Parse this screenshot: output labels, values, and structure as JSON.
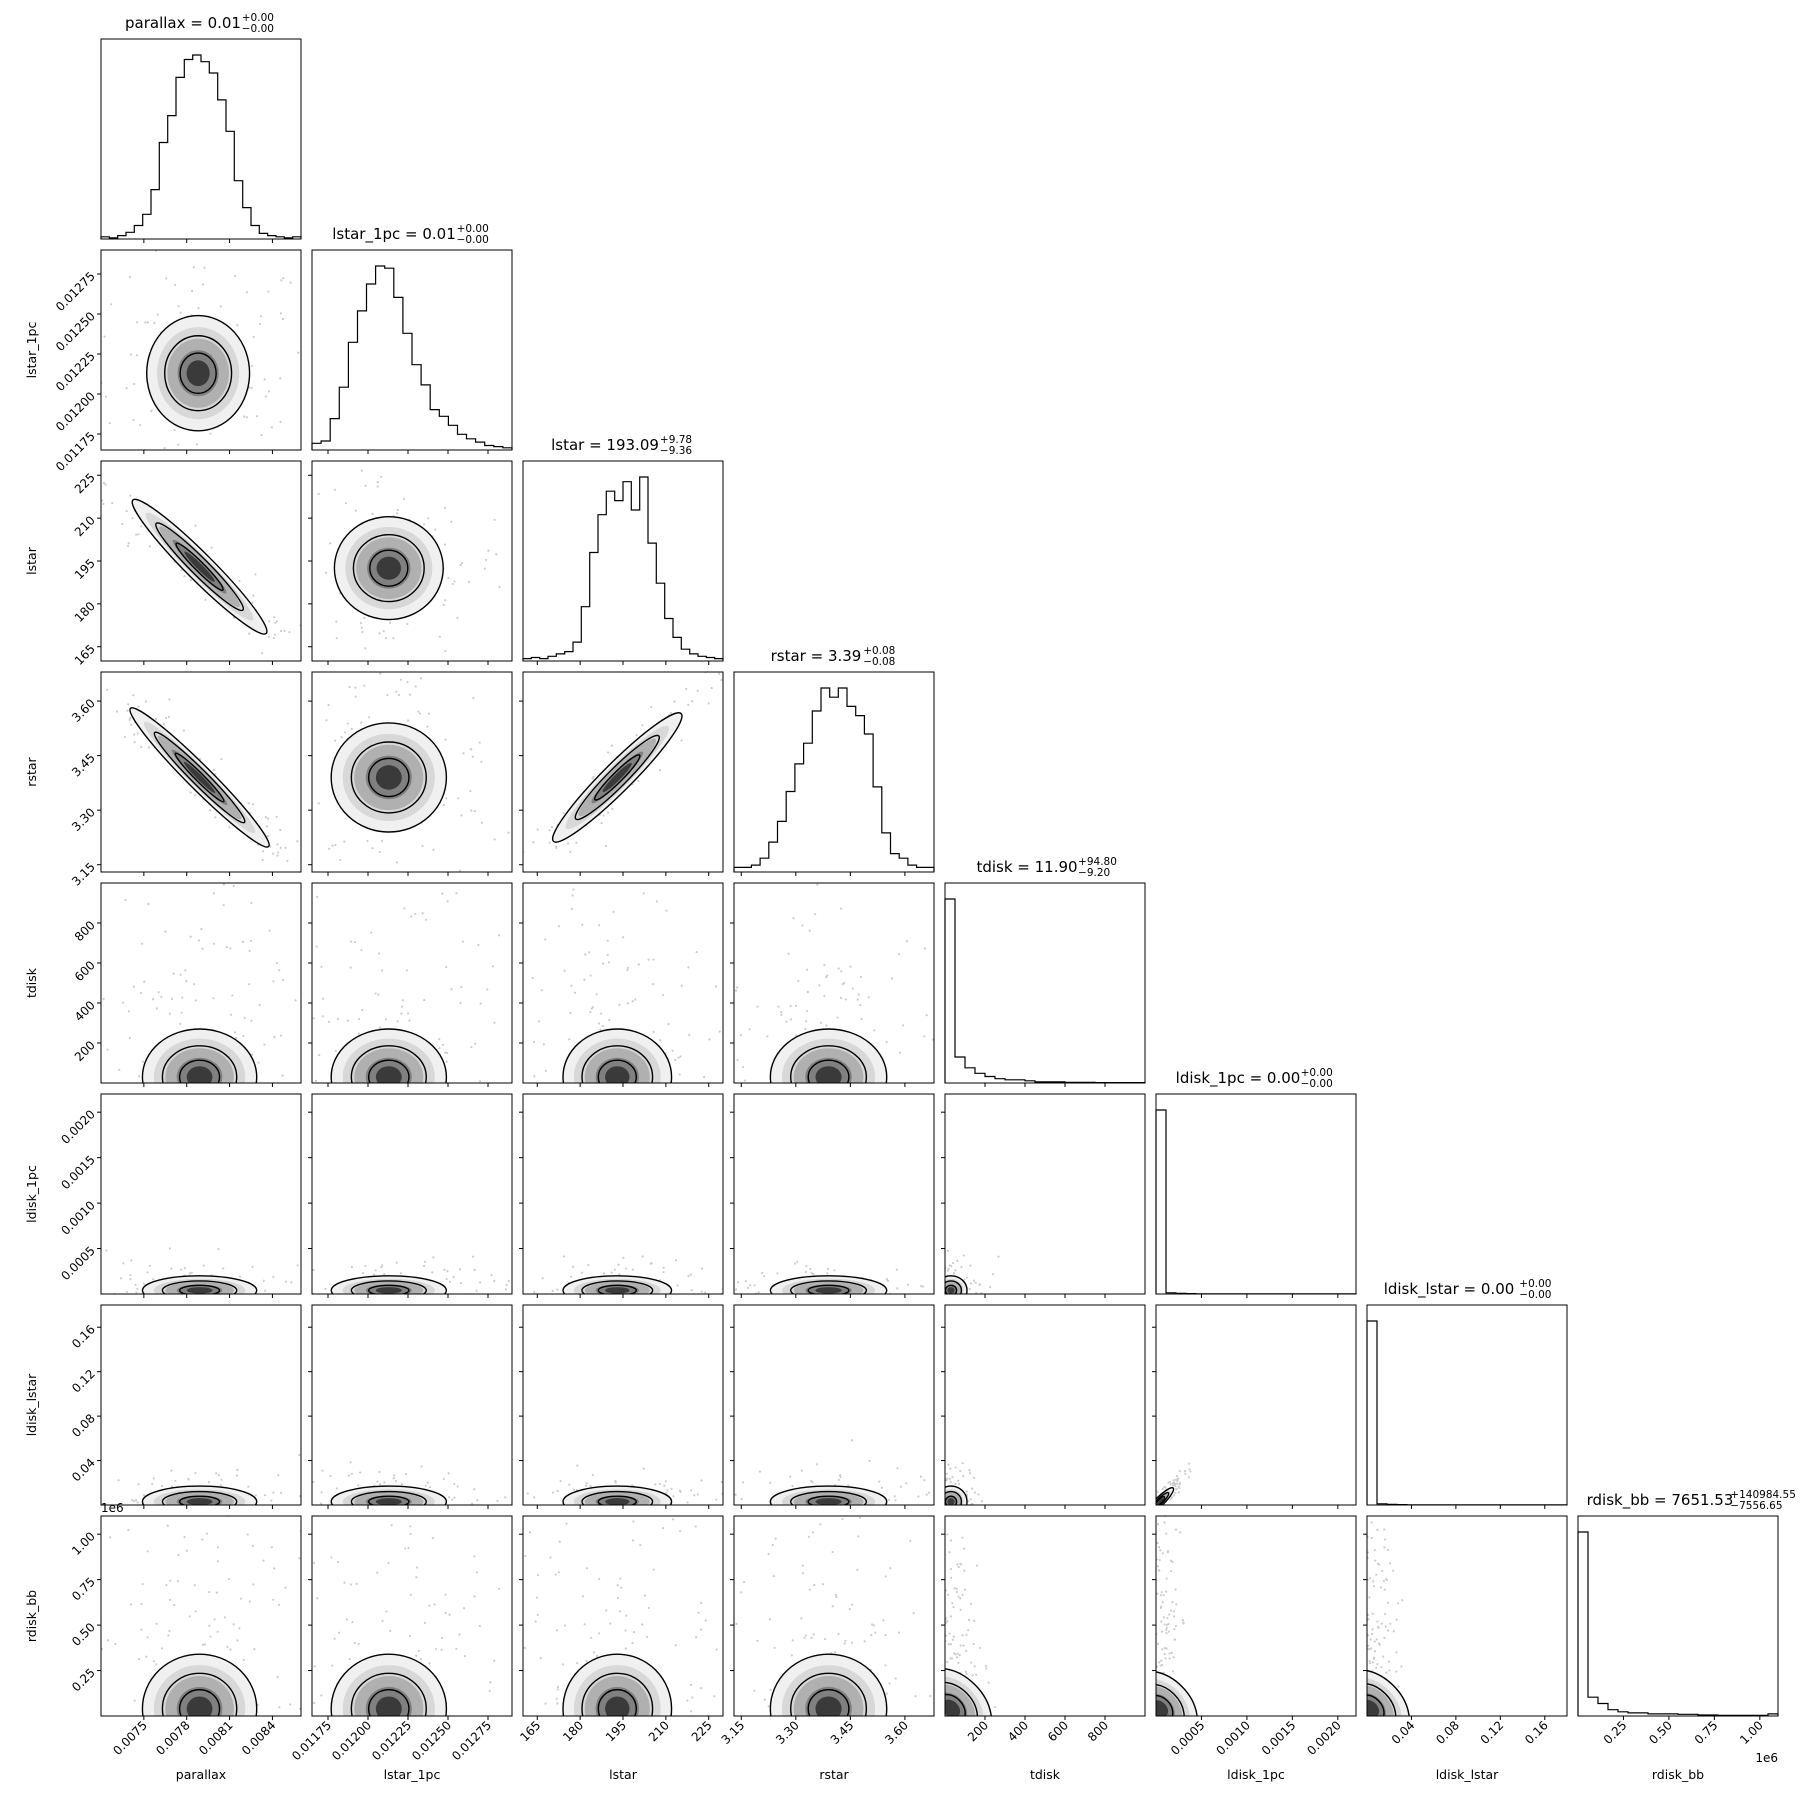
{
  "chart_data": {
    "type": "corner",
    "parameters": [
      {
        "name": "parallax",
        "axis_label": "parallax",
        "title_prefix": "parallax = ",
        "median": "0.01",
        "plus": "+0.00",
        "minus": "−0.00",
        "range": [
          0.0072,
          0.0086
        ],
        "ticks": [
          0.0075,
          0.0078,
          0.0081,
          0.0084
        ],
        "tick_labels": [
          "0.0075",
          "0.0078",
          "0.0081",
          "0.0084"
        ],
        "hist": [
          1.0,
          0.5,
          1.5,
          3.0,
          6.0,
          11.0,
          22.0,
          43.0,
          55.0,
          72.0,
          80.0,
          82.0,
          79.0,
          74.0,
          62.0,
          48.0,
          26.0,
          14.0,
          6.0,
          2.5,
          1.5,
          1.0,
          0.5,
          1.0
        ]
      },
      {
        "name": "lstar_1pc",
        "axis_label": "lstar_1pc",
        "title_prefix": "lstar_1pc = ",
        "median": "0.01",
        "plus": "+0.00",
        "minus": "−0.00",
        "range": [
          0.01165,
          0.0129
        ],
        "ticks": [
          0.01175,
          0.012,
          0.01225,
          0.0125,
          0.01275
        ],
        "tick_labels": [
          "0.01175",
          "0.01200",
          "0.01225",
          "0.01250",
          "0.01275"
        ],
        "hist": [
          3.0,
          4.0,
          14.0,
          28.0,
          48.0,
          62.0,
          74.0,
          82.0,
          81.0,
          68.0,
          52.0,
          38.0,
          29.0,
          18.0,
          15.0,
          11.0,
          7.0,
          5.0,
          3.5,
          2.0,
          1.5,
          1.0
        ]
      },
      {
        "name": "lstar",
        "axis_label": "lstar",
        "title_prefix": "lstar = ",
        "median": "193.09",
        "plus": "+9.78",
        "minus": "−9.36",
        "range": [
          160.0,
          230.0
        ],
        "ticks": [
          165,
          180,
          195,
          210,
          225
        ],
        "tick_labels": [
          "165",
          "180",
          "195",
          "210",
          "225"
        ],
        "hist": [
          1.0,
          1.5,
          1.0,
          2.0,
          3.0,
          4.0,
          8.0,
          23.0,
          46.0,
          62.0,
          72.0,
          68.0,
          76.0,
          64.0,
          78.0,
          50.0,
          33.0,
          18.0,
          10.0,
          5.0,
          3.0,
          2.0,
          1.5,
          1.0
        ]
      },
      {
        "name": "rstar",
        "axis_label": "rstar",
        "title_prefix": "rstar = ",
        "median": "3.39",
        "plus": "+0.08",
        "minus": "−0.08",
        "range": [
          3.13,
          3.68
        ],
        "ticks": [
          3.15,
          3.3,
          3.45,
          3.6
        ],
        "tick_labels": [
          "3.15",
          "3.30",
          "3.45",
          "3.60"
        ],
        "hist": [
          2.0,
          2.0,
          3.0,
          6.0,
          13.0,
          22.0,
          35.0,
          47.0,
          56.0,
          70.0,
          80.0,
          76.0,
          80.0,
          72.0,
          68.0,
          60.0,
          37.0,
          17.0,
          8.0,
          6.0,
          3.0,
          2.0,
          2.0
        ]
      },
      {
        "name": "tdisk",
        "axis_label": "tdisk",
        "title_prefix": "tdisk = ",
        "median": "11.90",
        "plus": "+94.80",
        "minus": "−9.20",
        "range": [
          0.0,
          1000.0
        ],
        "ticks": [
          200,
          400,
          600,
          800
        ],
        "tick_labels": [
          "200",
          "400",
          "600",
          "800"
        ],
        "hist": [
          85.0,
          12.0,
          7.0,
          4.5,
          3.0,
          2.0,
          1.5,
          1.5,
          1.0,
          0.5,
          0.5,
          0.5,
          0.3,
          0.3,
          0.3,
          0.2,
          0.2,
          0.2,
          0.2,
          0.2
        ]
      },
      {
        "name": "ldisk_1pc",
        "axis_label": "ldisk_1pc",
        "title_prefix": "ldisk_1pc = ",
        "median": "0.00",
        "plus": "+0.00",
        "minus": "−0.00",
        "range": [
          0.0,
          0.0022
        ],
        "ticks": [
          0.0005,
          0.001,
          0.0015,
          0.002
        ],
        "tick_labels": [
          "0.0005",
          "0.0010",
          "0.0015",
          "0.0020"
        ],
        "hist": [
          95.0,
          0.6,
          0.3,
          0.2,
          0.1,
          0.1,
          0.1,
          0.1,
          0.1,
          0.1,
          0.1,
          0.1,
          0.1,
          0.1,
          0.1,
          0.1,
          0.1,
          0.1,
          0.1,
          0.1
        ]
      },
      {
        "name": "ldisk_lstar",
        "axis_label": "ldisk_lstar",
        "title_prefix": "ldisk_lstar = ",
        "median": "0.00",
        "plus": "+0.00",
        "minus": "−0.00",
        "range": [
          0.0,
          0.18
        ],
        "ticks": [
          0.04,
          0.08,
          0.12,
          0.16
        ],
        "tick_labels": [
          "0.04",
          "0.08",
          "0.12",
          "0.16"
        ],
        "hist": [
          95.0,
          0.6,
          0.3,
          0.2,
          0.1,
          0.1,
          0.1,
          0.1,
          0.1,
          0.1,
          0.1,
          0.1,
          0.1,
          0.1,
          0.1,
          0.1,
          0.1,
          0.1,
          0.1,
          0.1
        ]
      },
      {
        "name": "rdisk_bb",
        "axis_label": "rdisk_bb",
        "title_prefix": "rdisk_bb = ",
        "median": "7651.53",
        "plus": "+140984.55",
        "minus": "−7556.65",
        "range": [
          0.0,
          1100000.0
        ],
        "ticks": [
          250000,
          500000,
          750000,
          1000000
        ],
        "tick_labels": [
          "0.25",
          "0.50",
          "0.75",
          "1.00"
        ],
        "offset_label": "1e6",
        "hist": [
          88.0,
          9.0,
          6.0,
          3.0,
          2.0,
          1.5,
          1.5,
          1.0,
          1.0,
          1.0,
          0.8,
          0.8,
          0.5,
          0.5,
          0.3,
          0.3,
          0.3,
          0.3,
          0.3,
          1.0
        ]
      }
    ],
    "pairs": [
      {
        "row": "lstar_1pc",
        "col": "parallax",
        "center": [
          0.00788,
          0.01213
        ],
        "spread": [
          0.00018,
          0.00018
        ],
        "corr": 0.0
      },
      {
        "row": "lstar",
        "col": "parallax",
        "center": [
          0.00789,
          193.0
        ],
        "spread": [
          0.00022,
          9.5
        ],
        "corr": -0.96
      },
      {
        "row": "lstar",
        "col": "lstar_1pc",
        "center": [
          0.01213,
          192.5
        ],
        "spread": [
          0.00017,
          9.0
        ],
        "corr": 0.0
      },
      {
        "row": "rstar",
        "col": "parallax",
        "center": [
          0.00789,
          3.39
        ],
        "spread": [
          0.00022,
          0.08
        ],
        "corr": -0.97
      },
      {
        "row": "rstar",
        "col": "lstar_1pc",
        "center": [
          0.01213,
          3.39
        ],
        "spread": [
          0.00018,
          0.075
        ],
        "corr": 0.0
      },
      {
        "row": "rstar",
        "col": "lstar",
        "center": [
          193.0,
          3.39
        ],
        "spread": [
          9.5,
          0.08
        ],
        "corr": 0.95
      },
      {
        "row": "tdisk",
        "col": "parallax",
        "center": [
          0.00789,
          30.0
        ],
        "spread": [
          0.0002,
          120.0
        ],
        "corr": 0.0
      },
      {
        "row": "tdisk",
        "col": "lstar_1pc",
        "center": [
          0.01213,
          30.0
        ],
        "spread": [
          0.00018,
          120.0
        ],
        "corr": 0.0
      },
      {
        "row": "tdisk",
        "col": "lstar",
        "center": [
          193.0,
          30.0
        ],
        "spread": [
          9.5,
          120.0
        ],
        "corr": 0.0
      },
      {
        "row": "tdisk",
        "col": "rstar",
        "center": [
          3.39,
          30.0
        ],
        "spread": [
          0.08,
          120.0
        ],
        "corr": 0.0
      },
      {
        "row": "ldisk_1pc",
        "col": "parallax",
        "center": [
          0.00789,
          4e-05
        ],
        "spread": [
          0.0002,
          8e-05
        ],
        "corr": 0.0
      },
      {
        "row": "ldisk_1pc",
        "col": "lstar_1pc",
        "center": [
          0.01213,
          4e-05
        ],
        "spread": [
          0.00018,
          8e-05
        ],
        "corr": 0.0
      },
      {
        "row": "ldisk_1pc",
        "col": "lstar",
        "center": [
          193.0,
          4e-05
        ],
        "spread": [
          9.5,
          8e-05
        ],
        "corr": 0.0
      },
      {
        "row": "ldisk_1pc",
        "col": "rstar",
        "center": [
          3.39,
          4e-05
        ],
        "spread": [
          0.08,
          8e-05
        ],
        "corr": 0.0
      },
      {
        "row": "ldisk_1pc",
        "col": "tdisk",
        "center": [
          30.0,
          4e-05
        ],
        "spread": [
          40.0,
          8e-05
        ],
        "corr": 0.0
      },
      {
        "row": "ldisk_lstar",
        "col": "parallax",
        "center": [
          0.00789,
          0.003
        ],
        "spread": [
          0.0002,
          0.007
        ],
        "corr": 0.0
      },
      {
        "row": "ldisk_lstar",
        "col": "lstar_1pc",
        "center": [
          0.01213,
          0.003
        ],
        "spread": [
          0.00018,
          0.007
        ],
        "corr": 0.0
      },
      {
        "row": "ldisk_lstar",
        "col": "lstar",
        "center": [
          193.0,
          0.003
        ],
        "spread": [
          9.5,
          0.007
        ],
        "corr": 0.0
      },
      {
        "row": "ldisk_lstar",
        "col": "rstar",
        "center": [
          3.39,
          0.003
        ],
        "spread": [
          0.08,
          0.007
        ],
        "corr": 0.0
      },
      {
        "row": "ldisk_lstar",
        "col": "tdisk",
        "center": [
          30.0,
          0.003
        ],
        "spread": [
          40.0,
          0.007
        ],
        "corr": 0.0
      },
      {
        "row": "ldisk_lstar",
        "col": "ldisk_1pc",
        "center": [
          4e-05,
          0.003
        ],
        "spread": [
          6e-05,
          0.006
        ],
        "corr": 0.9
      },
      {
        "row": "rdisk_bb",
        "col": "parallax",
        "center": [
          0.00789,
          40000.0
        ],
        "spread": [
          0.0002,
          150000.0
        ],
        "corr": 0.0
      },
      {
        "row": "rdisk_bb",
        "col": "lstar_1pc",
        "center": [
          0.01213,
          40000.0
        ],
        "spread": [
          0.00018,
          150000.0
        ],
        "corr": 0.0
      },
      {
        "row": "rdisk_bb",
        "col": "lstar",
        "center": [
          193.0,
          40000.0
        ],
        "spread": [
          9.5,
          150000.0
        ],
        "corr": 0.0
      },
      {
        "row": "rdisk_bb",
        "col": "rstar",
        "center": [
          3.39,
          40000.0
        ],
        "spread": [
          0.08,
          150000.0
        ],
        "corr": 0.0
      },
      {
        "row": "rdisk_bb",
        "col": "tdisk",
        "center": [
          30.0,
          40000.0
        ],
        "spread": [
          40.0,
          150000.0
        ],
        "corr": -0.3
      },
      {
        "row": "rdisk_bb",
        "col": "ldisk_1pc",
        "center": [
          4e-05,
          40000.0
        ],
        "spread": [
          6e-05,
          150000.0
        ],
        "corr": -0.3
      },
      {
        "row": "rdisk_bb",
        "col": "ldisk_lstar",
        "center": [
          0.003,
          40000.0
        ],
        "spread": [
          0.006,
          150000.0
        ],
        "corr": -0.3
      }
    ],
    "grid": false,
    "colors": {
      "line": "#000000",
      "density_dark": "#000000",
      "density_light": "#e6e6e6",
      "scatter": "#cccccc"
    }
  }
}
